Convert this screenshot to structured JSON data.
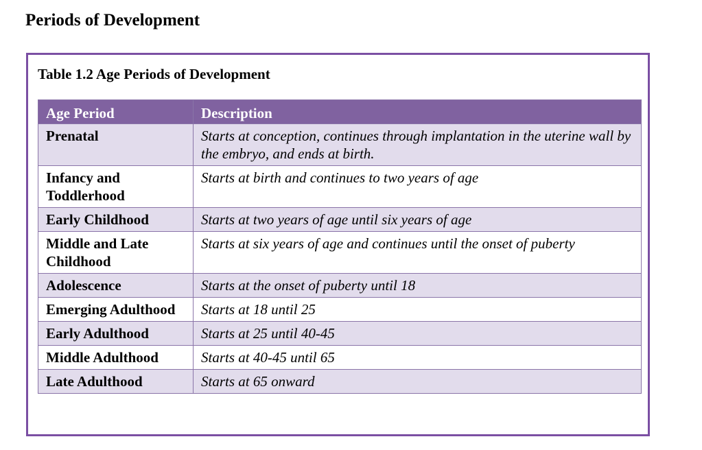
{
  "page": {
    "heading": "Periods of Development"
  },
  "table": {
    "caption": "Table 1.2 Age Periods of Development",
    "headers": {
      "period": "Age Period",
      "description": "Description"
    },
    "rows": [
      {
        "period": "Prenatal",
        "description": "Starts at conception, continues through implantation in the uterine wall by the embryo, and ends at birth."
      },
      {
        "period": "Infancy and Toddlerhood",
        "description": "Starts at birth and continues to two years of age"
      },
      {
        "period": "Early Childhood",
        "description": "Starts at two years of age until six years of age"
      },
      {
        "period": "Middle and Late Childhood",
        "description": "Starts at six years of age and continues until the onset of puberty"
      },
      {
        "period": "Adolescence",
        "description": "Starts at the onset of puberty until 18"
      },
      {
        "period": "Emerging Adulthood",
        "description": "Starts at 18 until 25"
      },
      {
        "period": "Early Adulthood",
        "description": "Starts at 25 until 40-45"
      },
      {
        "period": "Middle Adulthood",
        "description": "Starts at 40-45 until 65"
      },
      {
        "period": "Late Adulthood",
        "description": "Starts at 65 onward"
      }
    ]
  },
  "colors": {
    "header_bg": "#8062a0",
    "border": "#7b4fa3",
    "shaded_row": "#e2dcec"
  }
}
